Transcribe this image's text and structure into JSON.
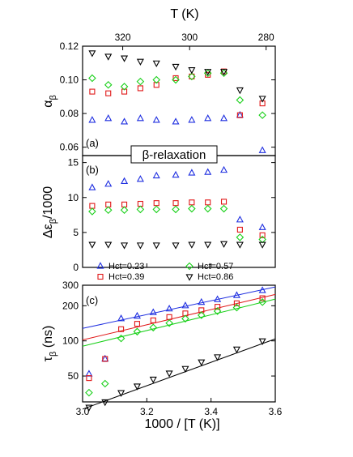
{
  "colors": {
    "Hct=0.23": "#1f2fe0",
    "Hct=0.39": "#e01818",
    "Hct=0.57": "#18d018",
    "Hct=0.86": "#000000"
  },
  "chart_data": [
    {
      "panel": "(a)",
      "type": "scatter",
      "ylabel": "α_β",
      "ylabel_main": "α",
      "ylabel_sub": "β",
      "xlabel": "",
      "xlabel_top": "T (K)",
      "x_top_ticks": [
        "280",
        "300",
        "320"
      ],
      "x_top_tick_values": [
        280,
        300,
        320
      ],
      "xlim": [
        3.0,
        3.6
      ],
      "ylim": [
        0.055,
        0.12
      ],
      "yticks": [
        "0.06",
        "0.08",
        "0.10",
        "0.12"
      ],
      "ytick_values": [
        0.06,
        0.08,
        0.1,
        0.12
      ],
      "annotation": "β-relaxation",
      "series": [
        {
          "name": "Hct=0.23",
          "marker": "triangle-up",
          "x": [
            3.03,
            3.08,
            3.13,
            3.18,
            3.23,
            3.29,
            3.34,
            3.39,
            3.44,
            3.49,
            3.56
          ],
          "y": [
            0.076,
            0.077,
            0.075,
            0.077,
            0.076,
            0.075,
            0.076,
            0.077,
            0.077,
            0.079,
            0.058
          ]
        },
        {
          "name": "Hct=0.39",
          "marker": "square",
          "x": [
            3.03,
            3.08,
            3.13,
            3.18,
            3.23,
            3.29,
            3.34,
            3.39,
            3.44,
            3.49,
            3.56
          ],
          "y": [
            0.093,
            0.092,
            0.093,
            0.095,
            0.097,
            0.101,
            0.102,
            0.103,
            0.105,
            0.079,
            0.086
          ]
        },
        {
          "name": "Hct=0.57",
          "marker": "diamond",
          "x": [
            3.03,
            3.08,
            3.13,
            3.18,
            3.23,
            3.29,
            3.34,
            3.39,
            3.44,
            3.49,
            3.56
          ],
          "y": [
            0.101,
            0.097,
            0.096,
            0.099,
            0.1,
            0.1,
            0.102,
            0.104,
            0.104,
            0.088,
            0.079
          ]
        },
        {
          "name": "Hct=0.86",
          "marker": "triangle-down",
          "x": [
            3.03,
            3.08,
            3.13,
            3.18,
            3.23,
            3.29,
            3.34,
            3.39,
            3.44,
            3.49,
            3.56
          ],
          "y": [
            0.116,
            0.114,
            0.113,
            0.111,
            0.11,
            0.108,
            0.106,
            0.105,
            0.105,
            0.094,
            0.089
          ]
        }
      ]
    },
    {
      "panel": "(b)",
      "type": "scatter",
      "ylabel": "Δε_β/1000",
      "ylabel_main_pre": "Δε",
      "ylabel_sub": "β",
      "ylabel_main_post": "/1000",
      "xlim": [
        3.0,
        3.6
      ],
      "ylim": [
        0,
        16
      ],
      "yticks": [
        "0",
        "5",
        "10",
        "15"
      ],
      "ytick_values": [
        0,
        5,
        10,
        15
      ],
      "series": [
        {
          "name": "Hct=0.23",
          "marker": "triangle-up",
          "x": [
            3.03,
            3.08,
            3.13,
            3.18,
            3.23,
            3.29,
            3.34,
            3.39,
            3.44,
            3.49,
            3.56
          ],
          "y": [
            11.4,
            11.9,
            12.3,
            12.6,
            13.1,
            13.2,
            13.5,
            13.6,
            13.9,
            6.8,
            5.7
          ]
        },
        {
          "name": "Hct=0.39",
          "marker": "square",
          "x": [
            3.03,
            3.08,
            3.13,
            3.18,
            3.23,
            3.29,
            3.34,
            3.39,
            3.44,
            3.49,
            3.56
          ],
          "y": [
            8.8,
            9.0,
            9.0,
            9.1,
            9.2,
            9.2,
            9.3,
            9.3,
            9.4,
            5.4,
            4.6
          ]
        },
        {
          "name": "Hct=0.57",
          "marker": "diamond",
          "x": [
            3.03,
            3.08,
            3.13,
            3.18,
            3.23,
            3.29,
            3.34,
            3.39,
            3.44,
            3.49,
            3.56
          ],
          "y": [
            8.0,
            8.2,
            8.2,
            8.3,
            8.3,
            8.3,
            8.4,
            8.4,
            8.4,
            4.3,
            4.0
          ]
        },
        {
          "name": "Hct=0.86",
          "marker": "triangle-down",
          "x": [
            3.03,
            3.08,
            3.13,
            3.18,
            3.23,
            3.29,
            3.34,
            3.39,
            3.44,
            3.49,
            3.56
          ],
          "y": [
            3.3,
            3.3,
            3.2,
            3.2,
            3.2,
            3.2,
            3.3,
            3.3,
            3.4,
            3.3,
            3.3
          ]
        }
      ]
    },
    {
      "panel": "(c)",
      "type": "scatter",
      "ylabel": "τ_β (ns)",
      "ylabel_main": "τ",
      "ylabel_sub": "β",
      "ylabel_post": " (ns)",
      "xlabel": "1000 / [T (K)]",
      "xticks": [
        "3.0",
        "3.2",
        "3.4",
        "3.6"
      ],
      "xtick_values": [
        3.0,
        3.2,
        3.4,
        3.6
      ],
      "xlim": [
        3.0,
        3.6
      ],
      "ylim": [
        30,
        300
      ],
      "yscale": "log",
      "yticks": [
        "50",
        "100",
        "200",
        "300"
      ],
      "ytick_values": [
        50,
        100,
        200,
        300
      ],
      "series": [
        {
          "name": "Hct=0.23",
          "marker": "triangle-up",
          "x": [
            3.02,
            3.07,
            3.12,
            3.17,
            3.22,
            3.27,
            3.32,
            3.37,
            3.42,
            3.48,
            3.56
          ],
          "y": [
            52,
            70,
            155,
            163,
            175,
            188,
            200,
            214,
            226,
            245,
            270
          ]
        },
        {
          "name": "Hct=0.39",
          "marker": "square",
          "x": [
            3.02,
            3.07,
            3.12,
            3.17,
            3.22,
            3.27,
            3.32,
            3.37,
            3.42,
            3.48,
            3.56
          ],
          "y": [
            48,
            70,
            126,
            140,
            150,
            160,
            172,
            183,
            196,
            210,
            232
          ]
        },
        {
          "name": "Hct=0.57",
          "marker": "diamond",
          "x": [
            3.02,
            3.07,
            3.12,
            3.17,
            3.22,
            3.27,
            3.32,
            3.37,
            3.42,
            3.48,
            3.56
          ],
          "y": [
            36,
            43,
            105,
            120,
            130,
            142,
            155,
            166,
            180,
            193,
            215
          ]
        },
        {
          "name": "Hct=0.86",
          "marker": "triangle-down",
          "x": [
            3.02,
            3.07,
            3.12,
            3.17,
            3.22,
            3.27,
            3.32,
            3.37,
            3.42,
            3.48,
            3.56
          ],
          "y": [
            27,
            30,
            36,
            41,
            47,
            53,
            58,
            66,
            73,
            85,
            100
          ]
        }
      ],
      "fit_lines": [
        {
          "name": "Hct=0.23",
          "x": [
            3.0,
            3.6
          ],
          "y": [
            128,
            290
          ]
        },
        {
          "name": "Hct=0.39",
          "x": [
            3.0,
            3.6
          ],
          "y": [
            102,
            250
          ]
        },
        {
          "name": "Hct=0.57",
          "x": [
            3.0,
            3.6
          ],
          "y": [
            90,
            228
          ]
        },
        {
          "name": "Hct=0.86",
          "x": [
            3.0,
            3.6
          ],
          "y": [
            26,
            104
          ]
        }
      ]
    }
  ],
  "legend": [
    {
      "label": "Hct=0.23",
      "marker": "triangle-up"
    },
    {
      "label": "Hct=0.57",
      "marker": "diamond"
    },
    {
      "label": "Hct=0.39",
      "marker": "square"
    },
    {
      "label": "Hct=0.86",
      "marker": "triangle-down"
    }
  ]
}
